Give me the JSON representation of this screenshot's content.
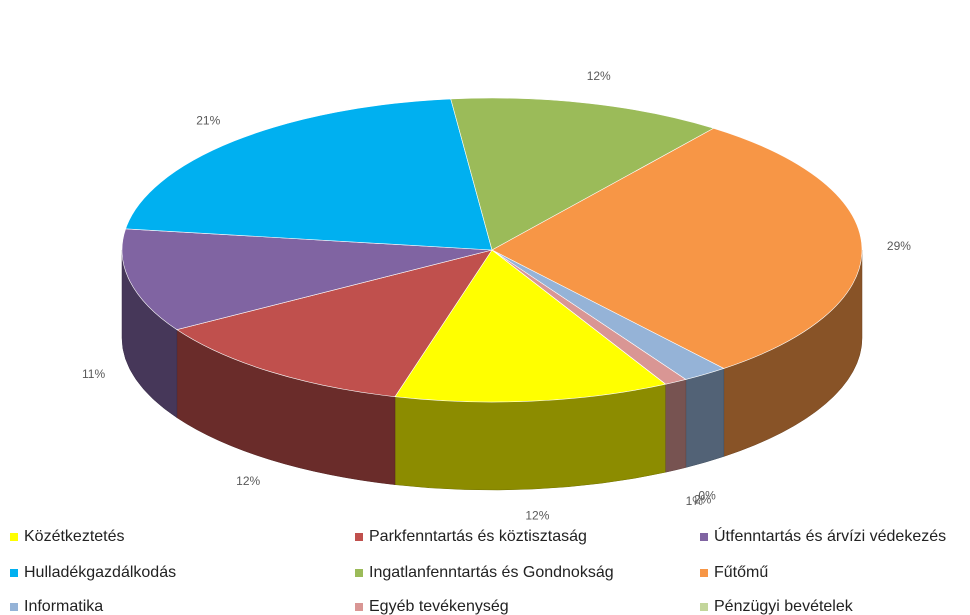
{
  "chart_data": {
    "type": "pie",
    "categories": [
      "Közétkeztetés",
      "Parkfenntartás és köztisztaság",
      "Útfenntartás és árvízi védekezés",
      "Hulladékgazdálkodás",
      "Ingatlanfenntartás és Gondnokság",
      "Fűtőmű",
      "Informatika",
      "Egyéb tevékenység",
      "Pénzügyi bevételek"
    ],
    "values": [
      12,
      12,
      11,
      21,
      12,
      29,
      2,
      1,
      0
    ],
    "value_labels": [
      "12%",
      "12%",
      "11%",
      "21%",
      "12%",
      "29%",
      "2%",
      "1%",
      "0%"
    ],
    "colors": [
      "#ffff00",
      "#c0504d",
      "#8064a2",
      "#00b0f0",
      "#9bbb59",
      "#f79646",
      "#95b3d7",
      "#d99694",
      "#c3d69b"
    ],
    "legend": "bottom"
  }
}
